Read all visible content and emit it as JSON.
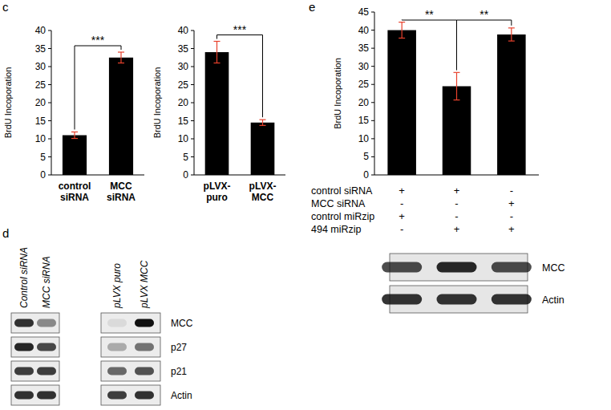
{
  "chart_data": [
    {
      "type": "bar",
      "y_label": "BrdU Incoporation",
      "categories": [
        "control siRNA",
        "MCC siRNA"
      ],
      "values": [
        11,
        32.5
      ],
      "errors": [
        0.9,
        1.5
      ],
      "ylim": [
        0,
        40
      ],
      "yticks": [
        0,
        5,
        10,
        15,
        20,
        25,
        30,
        35,
        40
      ],
      "color": "#000000",
      "annotations": [
        "***"
      ]
    },
    {
      "type": "bar",
      "y_label": "BrdU Incoporation",
      "categories": [
        "pLVX-puro",
        "pLVX-MCC"
      ],
      "values": [
        34,
        14.5
      ],
      "errors": [
        3,
        0.8
      ],
      "ylim": [
        0,
        40
      ],
      "yticks": [
        0,
        5,
        10,
        15,
        20,
        25,
        30,
        35,
        40
      ],
      "color": "#000000",
      "annotations": [
        "***"
      ]
    },
    {
      "type": "bar",
      "y_label": "BrdU Incoporation",
      "categories": [
        null,
        null,
        null
      ],
      "values": [
        40,
        24.5,
        38.8
      ],
      "errors": [
        2.2,
        3.8,
        1.8
      ],
      "ylim": [
        0,
        45
      ],
      "yticks": [
        0,
        5,
        10,
        15,
        20,
        25,
        30,
        35,
        40,
        45
      ],
      "color": "#000000",
      "annotations": [
        "**",
        "**"
      ]
    }
  ],
  "panel_labels": [
    "c",
    "d",
    "e"
  ],
  "conditions": [
    {
      "label": "control siRNA",
      "signs": [
        "+",
        "+",
        "-"
      ]
    },
    {
      "label": "MCC siRNA",
      "signs": [
        "-",
        "-",
        "+"
      ]
    },
    {
      "label": "control miRzip",
      "signs": [
        "+",
        "-",
        "-"
      ]
    },
    {
      "label": "494 miRzip",
      "signs": [
        "-",
        "+",
        "+"
      ]
    }
  ],
  "blots": [
    {
      "lanes": [
        "Control siRNA",
        "MCC siRNA",
        "pLVX puro",
        "pLVX MCC"
      ],
      "rows": [
        {
          "label": "MCC",
          "bands": [
            0.85,
            0.45,
            0.08,
            1
          ]
        },
        {
          "label": "p27",
          "bands": [
            0.9,
            0.75,
            0.3,
            0.55
          ]
        },
        {
          "label": "p21",
          "bands": [
            0.8,
            0.8,
            0.6,
            0.7
          ]
        },
        {
          "label": "Actin",
          "bands": [
            0.85,
            0.85,
            0.8,
            0.85
          ]
        }
      ]
    },
    {
      "rows": [
        {
          "label": "MCC",
          "bands": [
            0.75,
            0.9,
            0.75
          ]
        },
        {
          "label": "Actin",
          "bands": [
            0.85,
            0.85,
            0.85
          ]
        }
      ]
    }
  ]
}
